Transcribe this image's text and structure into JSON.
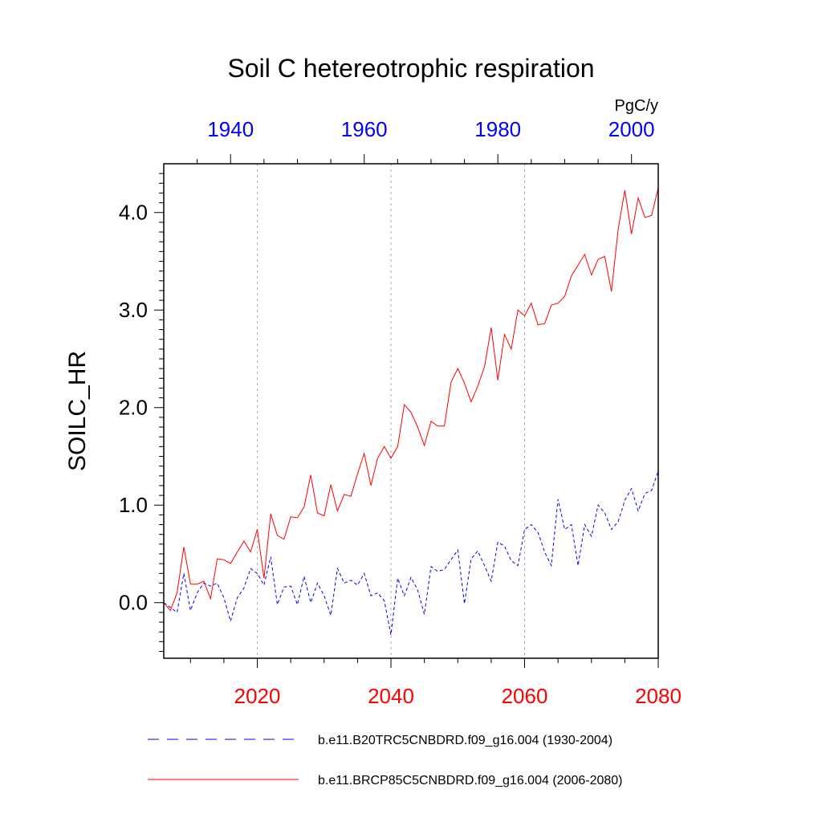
{
  "chart_data": {
    "type": "line",
    "title": "Soil C hetereotrophic respiration",
    "units_label": "PgC/y",
    "ylabel": "SOILC_HR",
    "ylim": [
      -0.57,
      4.5
    ],
    "y_ticks": [
      {
        "value": 0.0,
        "label": "0.0"
      },
      {
        "value": 1.0,
        "label": "1.0"
      },
      {
        "value": 2.0,
        "label": "2.0"
      },
      {
        "value": 3.0,
        "label": "3.0"
      },
      {
        "value": 4.0,
        "label": "4.0"
      }
    ],
    "x_bottom": {
      "range": [
        2006,
        2080
      ],
      "color": "#ff0000",
      "ticks": [
        {
          "value": 2020,
          "label": "2020"
        },
        {
          "value": 2040,
          "label": "2040"
        },
        {
          "value": 2060,
          "label": "2060"
        },
        {
          "value": 2080,
          "label": "2080"
        }
      ]
    },
    "x_top": {
      "range": [
        1930,
        2004
      ],
      "color": "#0000ff",
      "ticks": [
        {
          "value": 1940,
          "label": "1940"
        },
        {
          "value": 1960,
          "label": "1960"
        },
        {
          "value": 1980,
          "label": "1980"
        },
        {
          "value": 2000,
          "label": "2000"
        }
      ]
    },
    "grid_x": [
      2020,
      2040,
      2060
    ],
    "series": [
      {
        "name": "b.e11.B20TRC5CNBDRD.f09_g16.004 (1930-2004)",
        "axis": "top",
        "color": "#0000ff",
        "dash": "dashed",
        "x": [
          1930,
          1931,
          1932,
          1933,
          1934,
          1935,
          1936,
          1937,
          1938,
          1939,
          1940,
          1941,
          1942,
          1943,
          1944,
          1945,
          1946,
          1947,
          1948,
          1949,
          1950,
          1951,
          1952,
          1953,
          1954,
          1955,
          1956,
          1957,
          1958,
          1959,
          1960,
          1961,
          1962,
          1963,
          1964,
          1965,
          1966,
          1967,
          1968,
          1969,
          1970,
          1971,
          1972,
          1973,
          1974,
          1975,
          1976,
          1977,
          1978,
          1979,
          1980,
          1981,
          1982,
          1983,
          1984,
          1985,
          1986,
          1987,
          1988,
          1989,
          1990,
          1991,
          1992,
          1993,
          1994,
          1995,
          1996,
          1997,
          1998,
          1999,
          2000,
          2001,
          2002,
          2003,
          2004
        ],
        "y": [
          0.0,
          -0.05,
          -0.1,
          0.3,
          -0.08,
          0.1,
          0.2,
          0.17,
          0.2,
          0.05,
          -0.19,
          0.05,
          0.15,
          0.35,
          0.3,
          0.18,
          0.47,
          -0.02,
          0.16,
          0.17,
          -0.02,
          0.27,
          0.0,
          0.2,
          0.07,
          -0.13,
          0.35,
          0.2,
          0.23,
          0.18,
          0.3,
          0.07,
          0.1,
          0.02,
          -0.33,
          0.25,
          0.07,
          0.26,
          0.13,
          -0.12,
          0.37,
          0.32,
          0.34,
          0.44,
          0.54,
          -0.01,
          0.45,
          0.53,
          0.38,
          0.22,
          0.62,
          0.58,
          0.43,
          0.38,
          0.75,
          0.8,
          0.72,
          0.52,
          0.38,
          1.06,
          0.75,
          0.8,
          0.38,
          0.8,
          0.68,
          1.0,
          0.92,
          0.75,
          0.83,
          1.05,
          1.17,
          0.94,
          1.12,
          1.15,
          1.35
        ]
      },
      {
        "name": "b.e11.BRCP85C5CNBDRD.f09_g16.004 (2006-2080)",
        "axis": "bottom",
        "color": "#ff0000",
        "dash": "solid",
        "x": [
          2006,
          2007,
          2008,
          2009,
          2010,
          2011,
          2012,
          2013,
          2014,
          2015,
          2016,
          2017,
          2018,
          2019,
          2020,
          2021,
          2022,
          2023,
          2024,
          2025,
          2026,
          2027,
          2028,
          2029,
          2030,
          2031,
          2032,
          2033,
          2034,
          2035,
          2036,
          2037,
          2038,
          2039,
          2040,
          2041,
          2042,
          2043,
          2044,
          2045,
          2046,
          2047,
          2048,
          2049,
          2050,
          2051,
          2052,
          2053,
          2054,
          2055,
          2056,
          2057,
          2058,
          2059,
          2060,
          2061,
          2062,
          2063,
          2064,
          2065,
          2066,
          2067,
          2068,
          2069,
          2070,
          2071,
          2072,
          2073,
          2074,
          2075,
          2076,
          2077,
          2078,
          2079,
          2080
        ],
        "y": [
          0.0,
          -0.08,
          0.1,
          0.57,
          0.19,
          0.19,
          0.22,
          0.04,
          0.45,
          0.44,
          0.4,
          0.52,
          0.63,
          0.52,
          0.75,
          0.25,
          0.91,
          0.69,
          0.65,
          0.88,
          0.87,
          0.98,
          1.31,
          0.92,
          0.89,
          1.21,
          0.94,
          1.11,
          1.09,
          1.32,
          1.53,
          1.2,
          1.48,
          1.6,
          1.48,
          1.6,
          2.03,
          1.95,
          1.8,
          1.61,
          1.86,
          1.81,
          1.81,
          2.26,
          2.4,
          2.25,
          2.06,
          2.22,
          2.42,
          2.82,
          2.28,
          2.75,
          2.6,
          3.0,
          2.94,
          3.07,
          2.85,
          2.86,
          3.05,
          3.07,
          3.14,
          3.35,
          3.46,
          3.57,
          3.36,
          3.52,
          3.55,
          3.19,
          3.83,
          4.23,
          3.78,
          4.15,
          3.95,
          3.97,
          4.25
        ]
      }
    ]
  }
}
